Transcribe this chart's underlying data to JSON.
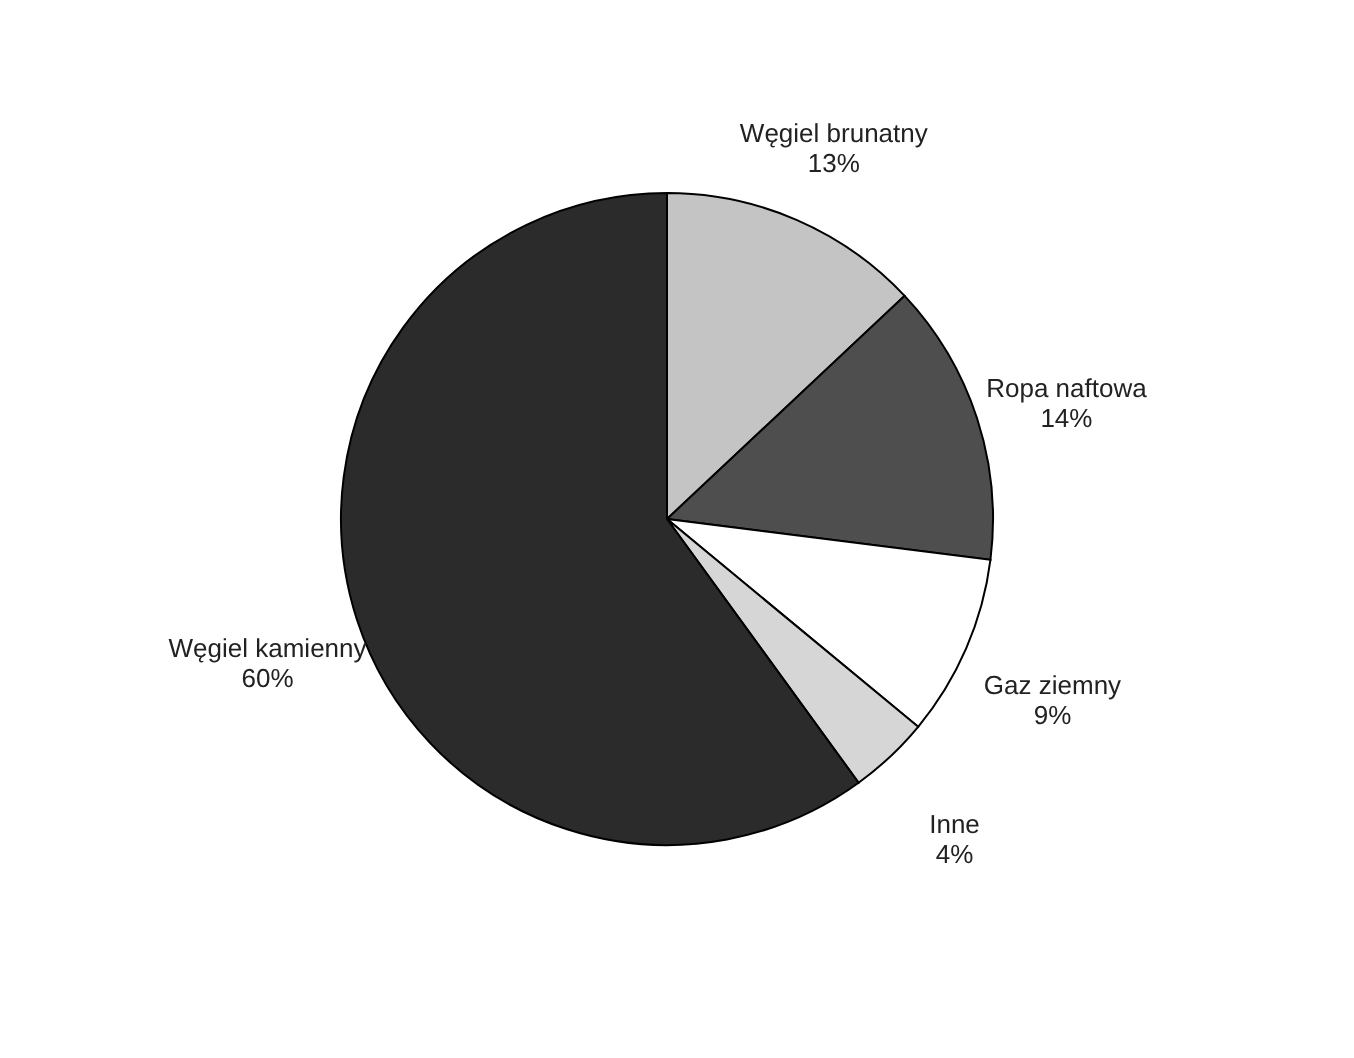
{
  "chart_data": {
    "type": "pie",
    "categories": [
      "Węgiel brunatny",
      "Ropa naftowa",
      "Gaz ziemny",
      "Inne",
      "Węgiel kamienny"
    ],
    "values": [
      13,
      14,
      9,
      4,
      60
    ],
    "value_labels": [
      "13%",
      "14%",
      "9%",
      "4%",
      "60%"
    ],
    "colors": [
      "#c4c4c4",
      "#4e4e4e",
      "#ffffff",
      "#d6d6d6",
      "#2b2b2b"
    ],
    "legend": false
  }
}
